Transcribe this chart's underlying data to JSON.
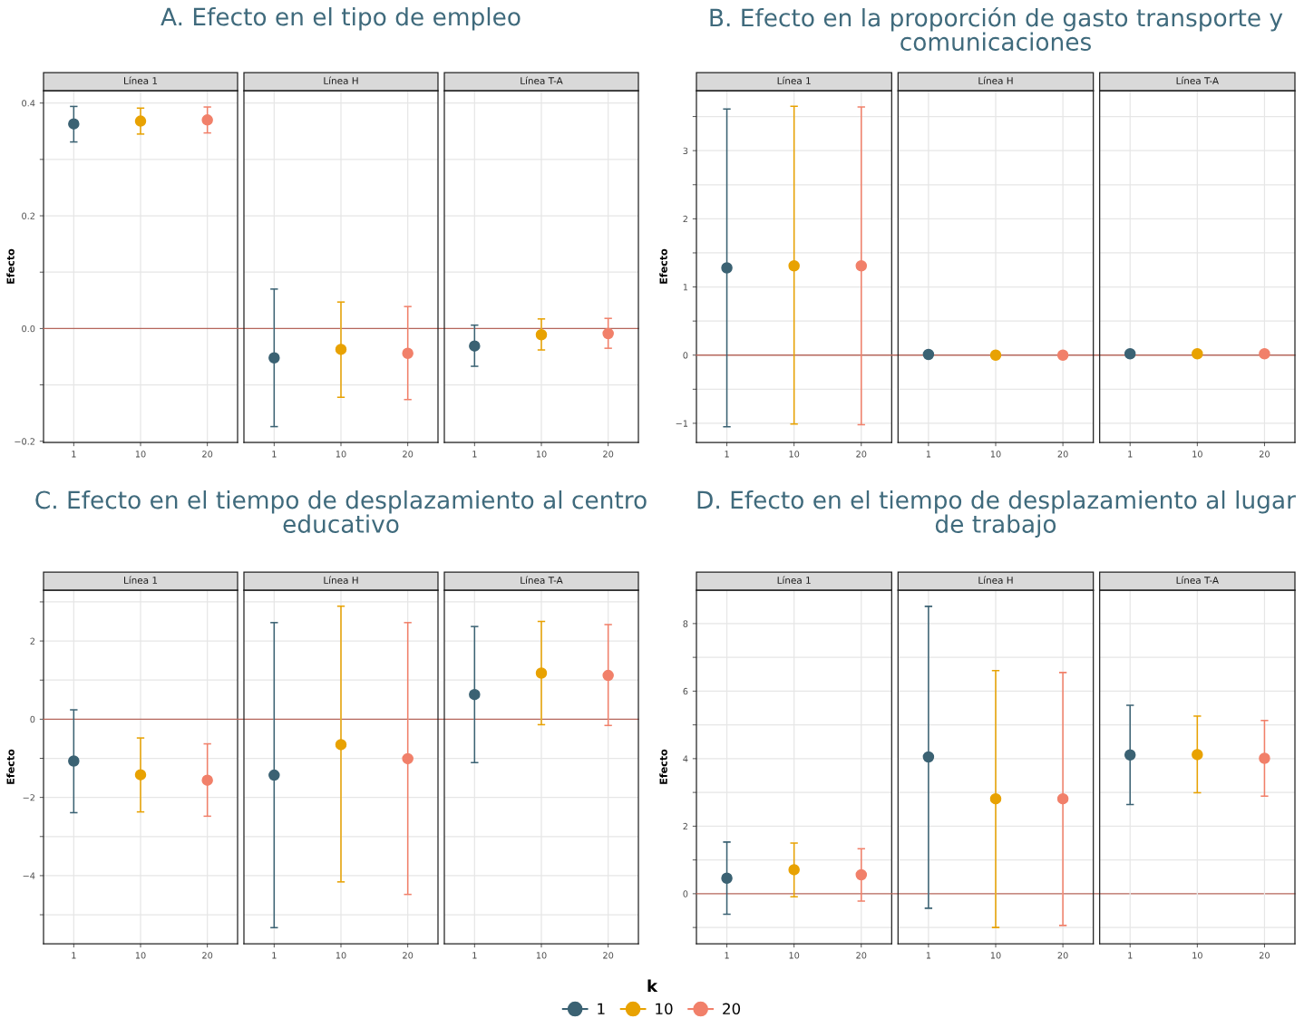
{
  "chart_data": [
    {
      "type": "scatter",
      "title": "A. Efecto en el tipo de empleo",
      "ylabel": "Efecto",
      "categories": [
        "1",
        "10",
        "20",
        "1",
        "10",
        "20",
        "1",
        "10",
        "20"
      ],
      "annotations": [
        "Línea 1",
        "Línea H",
        "Línea T-A"
      ],
      "series": [
        {
          "name": "1",
          "color": "#3b6273",
          "values": [
            0.363,
            null,
            null,
            -0.052,
            null,
            null,
            -0.031,
            null,
            null
          ],
          "errors": [
            [
              0.331,
              0.394
            ],
            null,
            null,
            [
              -0.174,
              0.07
            ],
            null,
            null,
            [
              -0.067,
              0.006
            ],
            null,
            null
          ]
        },
        {
          "name": "10",
          "color": "#e8a202",
          "values": [
            null,
            0.368,
            null,
            null,
            -0.037,
            null,
            null,
            -0.011,
            null
          ],
          "errors": [
            null,
            [
              0.345,
              0.391
            ],
            null,
            null,
            [
              -0.122,
              0.047
            ],
            null,
            null,
            [
              -0.038,
              0.017
            ],
            null
          ]
        },
        {
          "name": "20",
          "color": "#f1806a",
          "values": [
            null,
            null,
            0.37,
            null,
            null,
            -0.044,
            null,
            null,
            -0.009
          ],
          "errors": [
            null,
            null,
            [
              0.347,
              0.393
            ],
            null,
            null,
            [
              -0.126,
              0.039
            ],
            null,
            null,
            [
              -0.035,
              0.018
            ]
          ]
        }
      ],
      "ylim": [
        -0.202,
        0.422
      ],
      "yticks": [
        {
          "value": -0.2,
          "label": "−0.2"
        },
        {
          "value": -0.1,
          "label": null
        },
        {
          "value": 0,
          "label": "0.0"
        },
        {
          "value": 0.1,
          "label": null
        },
        {
          "value": 0.2,
          "label": "0.2"
        },
        {
          "value": 0.3,
          "label": null
        },
        {
          "value": 0.4,
          "label": "0.4"
        }
      ],
      "grid": true,
      "marker": "circle",
      "ref_lines": [
        {
          "axis": "y",
          "value": 0,
          "color": "#b5665b"
        }
      ],
      "legend": "bottom",
      "legend_title": "k"
    },
    {
      "type": "scatter",
      "title": "B. Efecto en la proporción de gasto transporte y\ncomunicaciones",
      "ylabel": "Efecto",
      "categories": [
        "1",
        "10",
        "20",
        "1",
        "10",
        "20",
        "1",
        "10",
        "20"
      ],
      "annotations": [
        "Línea 1",
        "Línea H",
        "Línea T-A"
      ],
      "series": [
        {
          "color": "#3b6273",
          "values": [
            1.28,
            null,
            null,
            0.01,
            null,
            null,
            0.02,
            null,
            null
          ],
          "errors": [
            [
              -1.05,
              3.61
            ],
            null,
            null,
            null,
            null,
            null,
            null,
            null,
            null
          ]
        },
        {
          "color": "#e8a202",
          "values": [
            null,
            1.31,
            null,
            null,
            0.0,
            null,
            null,
            0.02,
            null
          ],
          "errors": [
            null,
            [
              -1.01,
              3.65
            ],
            null,
            null,
            null,
            null,
            null,
            null,
            null
          ]
        },
        {
          "color": "#f1806a",
          "values": [
            null,
            null,
            1.31,
            null,
            null,
            0.0,
            null,
            null,
            0.02
          ],
          "errors": [
            null,
            null,
            [
              -1.02,
              3.64
            ],
            null,
            null,
            null,
            null,
            null,
            null
          ]
        }
      ],
      "ylim": [
        -1.28,
        3.88
      ],
      "yticks": [
        {
          "value": -1,
          "label": "−1"
        },
        {
          "value": -0.5,
          "label": null
        },
        {
          "value": 0,
          "label": "0"
        },
        {
          "value": 0.5,
          "label": null
        },
        {
          "value": 1,
          "label": "1"
        },
        {
          "value": 1.5,
          "label": null
        },
        {
          "value": 2,
          "label": "2"
        },
        {
          "value": 2.5,
          "label": null
        },
        {
          "value": 3,
          "label": "3"
        },
        {
          "value": 3.5,
          "label": null
        }
      ],
      "grid": true,
      "marker": "circle",
      "ref_lines": [
        {
          "axis": "y",
          "value": 0,
          "color": "#b5665b"
        }
      ]
    },
    {
      "type": "scatter",
      "title": "C. Efecto en el tiempo de desplazamiento al centro\neducativo",
      "ylabel": "Efecto",
      "categories": [
        "1",
        "10",
        "20",
        "1",
        "10",
        "20",
        "1",
        "10",
        "20"
      ],
      "annotations": [
        "Línea 1",
        "Línea H",
        "Línea T-A"
      ],
      "series": [
        {
          "color": "#3b6273",
          "values": [
            -1.07,
            null,
            null,
            -1.43,
            null,
            null,
            0.63,
            null,
            null
          ],
          "errors": [
            [
              -2.39,
              0.24
            ],
            null,
            null,
            [
              -5.33,
              2.47
            ],
            null,
            null,
            [
              -1.11,
              2.37
            ],
            null,
            null
          ]
        },
        {
          "color": "#e8a202",
          "values": [
            null,
            -1.42,
            null,
            null,
            -0.65,
            null,
            null,
            1.18,
            null
          ],
          "errors": [
            null,
            [
              -2.37,
              -0.48
            ],
            null,
            null,
            [
              -4.16,
              2.89
            ],
            null,
            null,
            [
              -0.14,
              2.5
            ],
            null
          ]
        },
        {
          "color": "#f1806a",
          "values": [
            null,
            null,
            -1.56,
            null,
            null,
            -1.01,
            null,
            null,
            1.12
          ],
          "errors": [
            null,
            null,
            [
              -2.48,
              -0.63
            ],
            null,
            null,
            [
              -4.48,
              2.47
            ],
            null,
            null,
            [
              -0.16,
              2.42
            ]
          ]
        }
      ],
      "ylim": [
        -5.74,
        3.3
      ],
      "yticks": [
        {
          "value": -5,
          "label": null
        },
        {
          "value": -4,
          "label": "−4"
        },
        {
          "value": -3,
          "label": null
        },
        {
          "value": -2,
          "label": "−2"
        },
        {
          "value": -1,
          "label": null
        },
        {
          "value": 0,
          "label": "0"
        },
        {
          "value": 1,
          "label": null
        },
        {
          "value": 2,
          "label": "2"
        },
        {
          "value": 3,
          "label": null
        }
      ],
      "grid": true,
      "marker": "circle",
      "ref_lines": [
        {
          "axis": "y",
          "value": 0,
          "color": "#b5665b"
        }
      ]
    },
    {
      "type": "scatter",
      "title": "D. Efecto en el tiempo de desplazamiento al lugar\nde trabajo",
      "ylabel": "Efecto",
      "categories": [
        "1",
        "10",
        "20",
        "1",
        "10",
        "20",
        "1",
        "10",
        "20"
      ],
      "annotations": [
        "Línea 1",
        "Línea H",
        "Línea T-A"
      ],
      "series": [
        {
          "color": "#3b6273",
          "values": [
            0.46,
            null,
            null,
            4.05,
            null,
            null,
            4.11,
            null,
            null
          ],
          "errors": [
            [
              -0.61,
              1.53
            ],
            null,
            null,
            [
              -0.43,
              8.51
            ],
            null,
            null,
            [
              2.64,
              5.58
            ],
            null,
            null
          ]
        },
        {
          "color": "#e8a202",
          "values": [
            null,
            0.71,
            null,
            null,
            2.81,
            null,
            null,
            4.12,
            null
          ],
          "errors": [
            null,
            [
              -0.09,
              1.5
            ],
            null,
            null,
            [
              -1.0,
              6.61
            ],
            null,
            null,
            [
              2.99,
              5.26
            ],
            null
          ]
        },
        {
          "color": "#f1806a",
          "values": [
            null,
            null,
            0.56,
            null,
            null,
            2.81,
            null,
            null,
            4.01
          ],
          "errors": [
            null,
            null,
            [
              -0.22,
              1.33
            ],
            null,
            null,
            [
              -0.94,
              6.55
            ],
            null,
            null,
            [
              2.89,
              5.13
            ]
          ]
        }
      ],
      "ylim": [
        -1.48,
        8.99
      ],
      "yticks": [
        {
          "value": -1,
          "label": null
        },
        {
          "value": 0,
          "label": "0"
        },
        {
          "value": 1,
          "label": null
        },
        {
          "value": 2,
          "label": "2"
        },
        {
          "value": 3,
          "label": null
        },
        {
          "value": 4,
          "label": "4"
        },
        {
          "value": 5,
          "label": null
        },
        {
          "value": 6,
          "label": "6"
        },
        {
          "value": 7,
          "label": null
        },
        {
          "value": 8,
          "label": "8"
        }
      ],
      "grid": true,
      "marker": "circle",
      "ref_lines": [
        {
          "axis": "y",
          "value": 0,
          "color": "#b5665b"
        }
      ]
    }
  ]
}
